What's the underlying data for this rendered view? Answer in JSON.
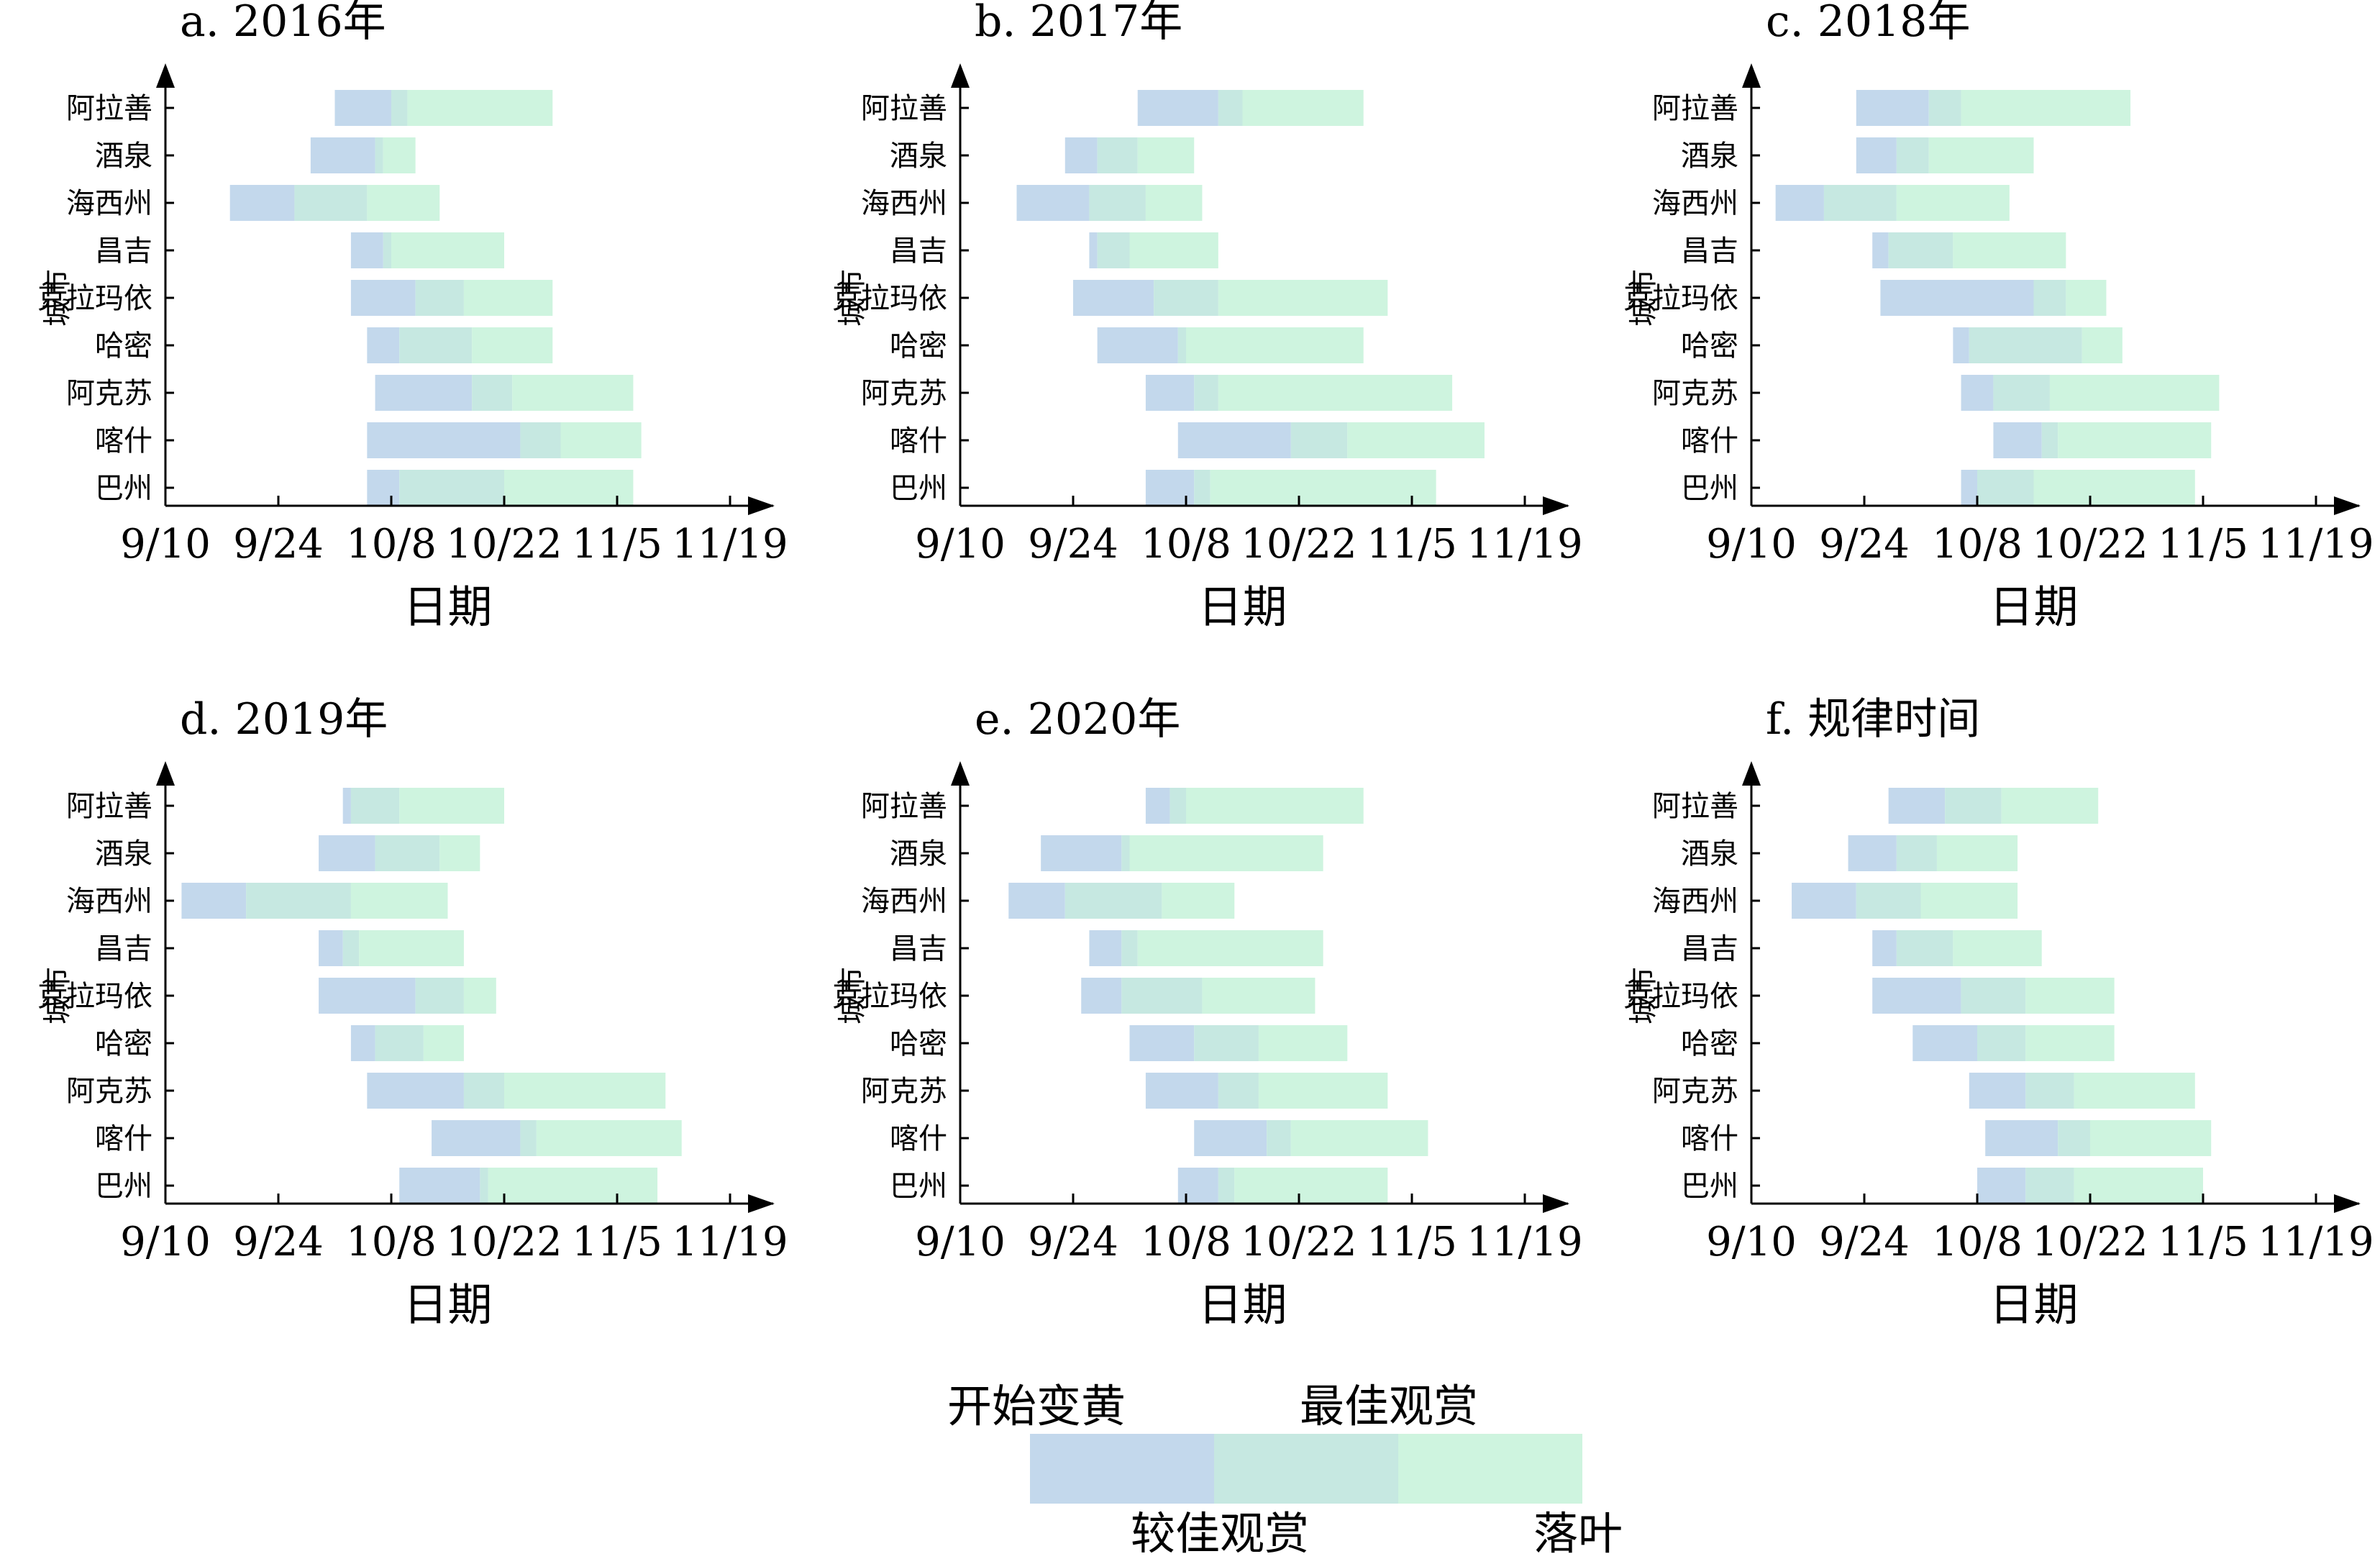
{
  "colors": {
    "seg_start": "#c3d8ec",
    "seg_good": "#c6e8e1",
    "seg_best": "#cef4df",
    "axis": "#000000"
  },
  "legend": {
    "labels": [
      "开始变黄",
      "较佳观赏",
      "最佳观赏",
      "落叶"
    ],
    "colors": [
      "#c3d8ec",
      "#c6e8e1",
      "#cef4df"
    ]
  },
  "chart_data": [
    {
      "type": "bar",
      "orientation": "horizontal-gantt",
      "title": "a. 2016年",
      "xlabel": "日期",
      "ylabel": "城市",
      "xticks": [
        "9/10",
        "9/24",
        "10/8",
        "10/22",
        "11/5",
        "11/19"
      ],
      "x_unit": "date",
      "categories": [
        "阿拉善",
        "酒泉",
        "海西州",
        "昌吉",
        "克拉玛依",
        "哈密",
        "阿克苏",
        "喀什",
        "巴州"
      ],
      "rows": [
        {
          "city": "阿拉善",
          "start": "10/1",
          "good": "10/8",
          "best": "10/10",
          "end": "10/28"
        },
        {
          "city": "酒泉",
          "start": "9/28",
          "good": "10/6",
          "best": "10/7",
          "end": "10/11"
        },
        {
          "city": "海西州",
          "start": "9/18",
          "good": "9/26",
          "best": "10/5",
          "end": "10/14"
        },
        {
          "city": "昌吉",
          "start": "10/3",
          "good": "10/7",
          "best": "10/8",
          "end": "10/22"
        },
        {
          "city": "克拉玛依",
          "start": "10/3",
          "good": "10/11",
          "best": "10/17",
          "end": "10/28"
        },
        {
          "city": "哈密",
          "start": "10/5",
          "good": "10/9",
          "best": "10/18",
          "end": "10/28"
        },
        {
          "city": "阿克苏",
          "start": "10/6",
          "good": "10/18",
          "best": "10/23",
          "end": "11/7"
        },
        {
          "city": "喀什",
          "start": "10/5",
          "good": "10/24",
          "best": "10/29",
          "end": "11/8"
        },
        {
          "city": "巴州",
          "start": "10/5",
          "good": "10/9",
          "best": "10/22",
          "end": "11/7"
        }
      ]
    },
    {
      "type": "bar",
      "orientation": "horizontal-gantt",
      "title": "b. 2017年",
      "xlabel": "日期",
      "ylabel": "城市",
      "xticks": [
        "9/10",
        "9/24",
        "10/8",
        "10/22",
        "11/5",
        "11/19"
      ],
      "x_unit": "date",
      "categories": [
        "阿拉善",
        "酒泉",
        "海西州",
        "昌吉",
        "克拉玛依",
        "哈密",
        "阿克苏",
        "喀什",
        "巴州"
      ],
      "rows": [
        {
          "city": "阿拉善",
          "start": "10/2",
          "good": "10/12",
          "best": "10/15",
          "end": "10/30"
        },
        {
          "city": "酒泉",
          "start": "9/23",
          "good": "9/27",
          "best": "10/2",
          "end": "10/9"
        },
        {
          "city": "海西州",
          "start": "9/17",
          "good": "9/26",
          "best": "10/3",
          "end": "10/10"
        },
        {
          "city": "昌吉",
          "start": "9/26",
          "good": "9/27",
          "best": "10/1",
          "end": "10/12"
        },
        {
          "city": "克拉玛依",
          "start": "9/24",
          "good": "10/4",
          "best": "10/12",
          "end": "11/2"
        },
        {
          "city": "哈密",
          "start": "9/27",
          "good": "10/7",
          "best": "10/8",
          "end": "10/30"
        },
        {
          "city": "阿克苏",
          "start": "10/3",
          "good": "10/9",
          "best": "10/12",
          "end": "11/10"
        },
        {
          "city": "喀什",
          "start": "10/7",
          "good": "10/21",
          "best": "10/28",
          "end": "11/14"
        },
        {
          "city": "巴州",
          "start": "10/3",
          "good": "10/9",
          "best": "10/11",
          "end": "11/8"
        }
      ]
    },
    {
      "type": "bar",
      "orientation": "horizontal-gantt",
      "title": "c. 2018年",
      "xlabel": "日期",
      "ylabel": "城市",
      "xticks": [
        "9/10",
        "9/24",
        "10/8",
        "10/22",
        "11/5",
        "11/19"
      ],
      "x_unit": "date",
      "categories": [
        "阿拉善",
        "酒泉",
        "海西州",
        "昌吉",
        "克拉玛依",
        "哈密",
        "阿克苏",
        "喀什",
        "巴州"
      ],
      "rows": [
        {
          "city": "阿拉善",
          "start": "9/23",
          "good": "10/2",
          "best": "10/6",
          "end": "10/27"
        },
        {
          "city": "酒泉",
          "start": "9/23",
          "good": "9/28",
          "best": "10/2",
          "end": "10/15"
        },
        {
          "city": "海西州",
          "start": "9/13",
          "good": "9/19",
          "best": "9/28",
          "end": "10/12"
        },
        {
          "city": "昌吉",
          "start": "9/25",
          "good": "9/27",
          "best": "10/5",
          "end": "10/19"
        },
        {
          "city": "克拉玛依",
          "start": "9/26",
          "good": "10/15",
          "best": "10/19",
          "end": "10/24"
        },
        {
          "city": "哈密",
          "start": "10/5",
          "good": "10/7",
          "best": "10/21",
          "end": "10/26"
        },
        {
          "city": "阿克苏",
          "start": "10/6",
          "good": "10/10",
          "best": "10/17",
          "end": "11/7"
        },
        {
          "city": "喀什",
          "start": "10/10",
          "good": "10/16",
          "best": "10/18",
          "end": "11/6"
        },
        {
          "city": "巴州",
          "start": "10/6",
          "good": "10/8",
          "best": "10/15",
          "end": "11/4"
        }
      ]
    },
    {
      "type": "bar",
      "orientation": "horizontal-gantt",
      "title": "d. 2019年",
      "xlabel": "日期",
      "ylabel": "城市",
      "xticks": [
        "9/10",
        "9/24",
        "10/8",
        "10/22",
        "11/5",
        "11/19"
      ],
      "x_unit": "date",
      "categories": [
        "阿拉善",
        "酒泉",
        "海西州",
        "昌吉",
        "克拉玛依",
        "哈密",
        "阿克苏",
        "喀什",
        "巴州"
      ],
      "rows": [
        {
          "city": "阿拉善",
          "start": "10/2",
          "good": "10/3",
          "best": "10/9",
          "end": "10/22"
        },
        {
          "city": "酒泉",
          "start": "9/29",
          "good": "10/6",
          "best": "10/14",
          "end": "10/19"
        },
        {
          "city": "海西州",
          "start": "9/12",
          "good": "9/20",
          "best": "10/3",
          "end": "10/15"
        },
        {
          "city": "昌吉",
          "start": "9/29",
          "good": "10/2",
          "best": "10/4",
          "end": "10/17"
        },
        {
          "city": "克拉玛依",
          "start": "9/29",
          "good": "10/11",
          "best": "10/17",
          "end": "10/21"
        },
        {
          "city": "哈密",
          "start": "10/3",
          "good": "10/6",
          "best": "10/12",
          "end": "10/17"
        },
        {
          "city": "阿克苏",
          "start": "10/5",
          "good": "10/17",
          "best": "10/22",
          "end": "11/11"
        },
        {
          "city": "喀什",
          "start": "10/13",
          "good": "10/24",
          "best": "10/26",
          "end": "11/13"
        },
        {
          "city": "巴州",
          "start": "10/9",
          "good": "10/19",
          "best": "10/20",
          "end": "11/10"
        }
      ]
    },
    {
      "type": "bar",
      "orientation": "horizontal-gantt",
      "title": "e. 2020年",
      "xlabel": "日期",
      "ylabel": "城市",
      "xticks": [
        "9/10",
        "9/24",
        "10/8",
        "10/22",
        "11/5",
        "11/19"
      ],
      "x_unit": "date",
      "categories": [
        "阿拉善",
        "酒泉",
        "海西州",
        "昌吉",
        "克拉玛依",
        "哈密",
        "阿克苏",
        "喀什",
        "巴州"
      ],
      "rows": [
        {
          "city": "阿拉善",
          "start": "10/3",
          "good": "10/6",
          "best": "10/8",
          "end": "10/30"
        },
        {
          "city": "酒泉",
          "start": "9/20",
          "good": "9/30",
          "best": "10/1",
          "end": "10/25"
        },
        {
          "city": "海西州",
          "start": "9/16",
          "good": "9/23",
          "best": "10/5",
          "end": "10/14"
        },
        {
          "city": "昌吉",
          "start": "9/26",
          "good": "9/30",
          "best": "10/2",
          "end": "10/25"
        },
        {
          "city": "克拉玛依",
          "start": "9/25",
          "good": "9/30",
          "best": "10/10",
          "end": "10/24"
        },
        {
          "city": "哈密",
          "start": "10/1",
          "good": "10/9",
          "best": "10/17",
          "end": "10/28"
        },
        {
          "city": "阿克苏",
          "start": "10/3",
          "good": "10/12",
          "best": "10/17",
          "end": "11/2"
        },
        {
          "city": "喀什",
          "start": "10/9",
          "good": "10/18",
          "best": "10/21",
          "end": "11/7"
        },
        {
          "city": "巴州",
          "start": "10/7",
          "good": "10/12",
          "best": "10/14",
          "end": "11/2"
        }
      ]
    },
    {
      "type": "bar",
      "orientation": "horizontal-gantt",
      "title": "f. 规律时间",
      "xlabel": "日期",
      "ylabel": "城市",
      "xticks": [
        "9/10",
        "9/24",
        "10/8",
        "10/22",
        "11/5",
        "11/19"
      ],
      "x_unit": "date",
      "categories": [
        "阿拉善",
        "酒泉",
        "海西州",
        "昌吉",
        "克拉玛依",
        "哈密",
        "阿克苏",
        "喀什",
        "巴州"
      ],
      "rows": [
        {
          "city": "阿拉善",
          "start": "9/27",
          "good": "10/4",
          "best": "10/11",
          "end": "10/23"
        },
        {
          "city": "酒泉",
          "start": "9/22",
          "good": "9/28",
          "best": "10/3",
          "end": "10/13"
        },
        {
          "city": "海西州",
          "start": "9/15",
          "good": "9/23",
          "best": "10/1",
          "end": "10/13"
        },
        {
          "city": "昌吉",
          "start": "9/25",
          "good": "9/28",
          "best": "10/5",
          "end": "10/16"
        },
        {
          "city": "克拉玛依",
          "start": "9/25",
          "good": "10/6",
          "best": "10/14",
          "end": "10/25"
        },
        {
          "city": "哈密",
          "start": "9/30",
          "good": "10/8",
          "best": "10/14",
          "end": "10/25"
        },
        {
          "city": "阿克苏",
          "start": "10/7",
          "good": "10/14",
          "best": "10/20",
          "end": "11/4"
        },
        {
          "city": "喀什",
          "start": "10/9",
          "good": "10/18",
          "best": "10/22",
          "end": "11/6"
        },
        {
          "city": "巴州",
          "start": "10/8",
          "good": "10/14",
          "best": "10/20",
          "end": "11/5"
        }
      ]
    }
  ]
}
